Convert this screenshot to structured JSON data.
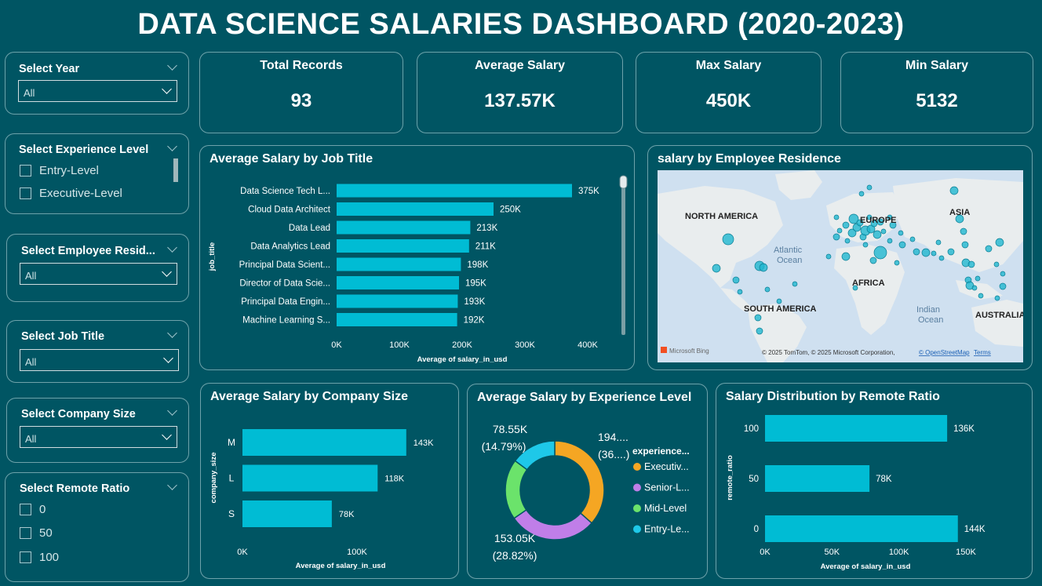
{
  "title": "DATA SCIENCE SALARIES DASHBOARD (2020-2023)",
  "slicers": {
    "year": {
      "title": "Select Year",
      "value": "All"
    },
    "experience": {
      "title": "Select Experience Level",
      "options": [
        "Entry-Level",
        "Executive-Level"
      ]
    },
    "residence": {
      "title": "Select Employee Resid...",
      "value": "All"
    },
    "job_title": {
      "title": "Select Job Title",
      "value": "All"
    },
    "company_size": {
      "title": "Select Company Size",
      "value": "All"
    },
    "remote": {
      "title": "Select Remote Ratio",
      "options": [
        "0",
        "50",
        "100"
      ]
    }
  },
  "kpis": [
    {
      "label": "Total Records",
      "value": "93"
    },
    {
      "label": "Average Salary",
      "value": "137.57K"
    },
    {
      "label": "Max Salary",
      "value": "450K"
    },
    {
      "label": "Min Salary",
      "value": "5132"
    }
  ],
  "map": {
    "title": "salary by Employee Residence",
    "labels": {
      "north_america": "NORTH AMERICA",
      "europe": "EUROPE",
      "asia": "ASIA",
      "atlantic": "Atlantic",
      "ocean": "Ocean",
      "africa": "AFRICA",
      "south_america": "SOUTH AMERICA",
      "indian": "Indian",
      "indian_ocean": "Ocean",
      "australia": "AUSTRALIA"
    },
    "attribution": "© 2025 TomTom, © 2025 Microsoft Corporation,",
    "osm": "© OpenStreetMap",
    "terms": "Terms",
    "bing": "Microsoft Bing",
    "colors": {
      "water": "#cfe0f0",
      "land": "#e8ecee",
      "bubble": "#1fb6cf"
    }
  },
  "colors": {
    "bar": "#00bcd4",
    "grid": "#5b8d96",
    "exec": "#f5a623",
    "senior": "#c07ee8",
    "mid": "#6be36b",
    "entry": "#1ec8e8"
  },
  "chart_data": [
    {
      "type": "bar",
      "title": "Average Salary by Job Title",
      "ylabel": "job_title",
      "xlabel": "Average of salary_in_usd",
      "categories": [
        "Data Science Tech L...",
        "Cloud Data Architect",
        "Data Lead",
        "Data Analytics Lead",
        "Principal Data Scient...",
        "Director of Data Scie...",
        "Principal Data Engin...",
        "Machine Learning S..."
      ],
      "values": [
        375000,
        250000,
        213000,
        211000,
        198000,
        195000,
        193000,
        192000
      ],
      "value_labels": [
        "375K",
        "250K",
        "213K",
        "211K",
        "198K",
        "195K",
        "193K",
        "192K"
      ],
      "ticks": [
        "0K",
        "100K",
        "200K",
        "300K",
        "400K"
      ],
      "xlim": [
        0,
        400000
      ]
    },
    {
      "type": "bar",
      "title": "Average Salary by Company Size",
      "ylabel": "company_size",
      "xlabel": "Average of salary_in_usd",
      "categories": [
        "M",
        "L",
        "S"
      ],
      "values": [
        143000,
        118000,
        78000
      ],
      "value_labels": [
        "143K",
        "118K",
        "78K"
      ],
      "ticks": [
        "0K",
        "100K"
      ],
      "xlim": [
        0,
        100000
      ]
    },
    {
      "type": "pie",
      "title": "Average Salary by Experience Level",
      "legend_title": "experience...",
      "categories": [
        "Executiv...",
        "Senior-L...",
        "Mid-Level",
        "Entry-Le..."
      ],
      "values": [
        194.0,
        153.05,
        105.0,
        78.55
      ],
      "labels": [
        {
          "value": "194....",
          "pct": "(36....)"
        },
        {
          "value": "153.05K",
          "pct": "(28.82%)"
        },
        {
          "value": "",
          "pct": ""
        },
        {
          "value": "78.55K",
          "pct": "(14.79%)"
        }
      ]
    },
    {
      "type": "bar",
      "title": "Salary Distribution by Remote Ratio",
      "ylabel": "remote_ratio",
      "xlabel": "Average of salary_in_usd",
      "categories": [
        "100",
        "50",
        "0"
      ],
      "values": [
        136000,
        78000,
        144000
      ],
      "value_labels": [
        "136K",
        "78K",
        "144K"
      ],
      "ticks": [
        "0K",
        "50K",
        "100K",
        "150K"
      ],
      "xlim": [
        0,
        150000
      ]
    }
  ]
}
